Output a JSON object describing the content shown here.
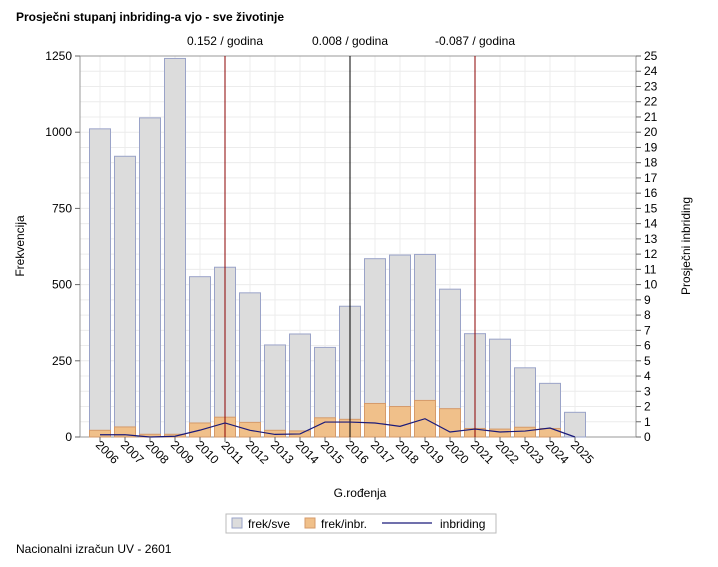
{
  "title": "Prosječni stupanj inbriding-a vjo - sve životinje",
  "footer": "Nacionalni izračun UV - 2601",
  "chart_data": {
    "type": "bar",
    "xlabel": "G.rođenja",
    "ylabel": "Frekvencija",
    "y2label": "Prosječni inbriding",
    "categories": [
      "2006",
      "2007",
      "2008",
      "2009",
      "2010",
      "2011",
      "2012",
      "2013",
      "2014",
      "2015",
      "2016",
      "2017",
      "2018",
      "2019",
      "2020",
      "2021",
      "2022",
      "2023",
      "2024",
      "2025"
    ],
    "ylim": [
      0,
      1250
    ],
    "yticks": [
      0,
      250,
      500,
      750,
      1000,
      1250
    ],
    "y2lim": [
      0,
      25
    ],
    "y2ticks": [
      0,
      1,
      2,
      3,
      4,
      5,
      6,
      7,
      8,
      9,
      10,
      11,
      12,
      13,
      14,
      15,
      16,
      17,
      18,
      19,
      20,
      21,
      22,
      23,
      24,
      25
    ],
    "grid": true,
    "legend_placement": "bottom",
    "series": [
      {
        "name": "frek/sve",
        "type": "bar",
        "axis": "left",
        "color": "#dcdcdc",
        "edge": "#9aa3c8",
        "values": [
          1011,
          921,
          1047,
          1242,
          526,
          557,
          473,
          302,
          338,
          294,
          429,
          585,
          597,
          599,
          485,
          339,
          321,
          227,
          176,
          81
        ]
      },
      {
        "name": "frek/inbr.",
        "type": "bar",
        "axis": "left",
        "color": "#f0c08a",
        "edge": "#d59a6a",
        "values": [
          22,
          33,
          9,
          9,
          46,
          65,
          48,
          22,
          20,
          63,
          58,
          110,
          100,
          120,
          93,
          28,
          26,
          32,
          28,
          0
        ]
      },
      {
        "name": "inbriding",
        "type": "line",
        "axis": "right",
        "color": "#1a1a7a",
        "values": [
          0.15,
          0.15,
          0,
          0.05,
          0.45,
          0.92,
          0.44,
          0.17,
          0.2,
          0.98,
          0.98,
          0.92,
          0.7,
          1.2,
          0.33,
          0.52,
          0.33,
          0.39,
          0.59,
          0
        ]
      }
    ],
    "reference_lines": [
      {
        "x": "2011",
        "label": "0.152 / godina",
        "color": "#8b0000"
      },
      {
        "x": "2016",
        "label": "0.008 / godina",
        "color": "#000000"
      },
      {
        "x": "2021",
        "label": "-0.087 / godina",
        "color": "#8b0000"
      }
    ]
  }
}
